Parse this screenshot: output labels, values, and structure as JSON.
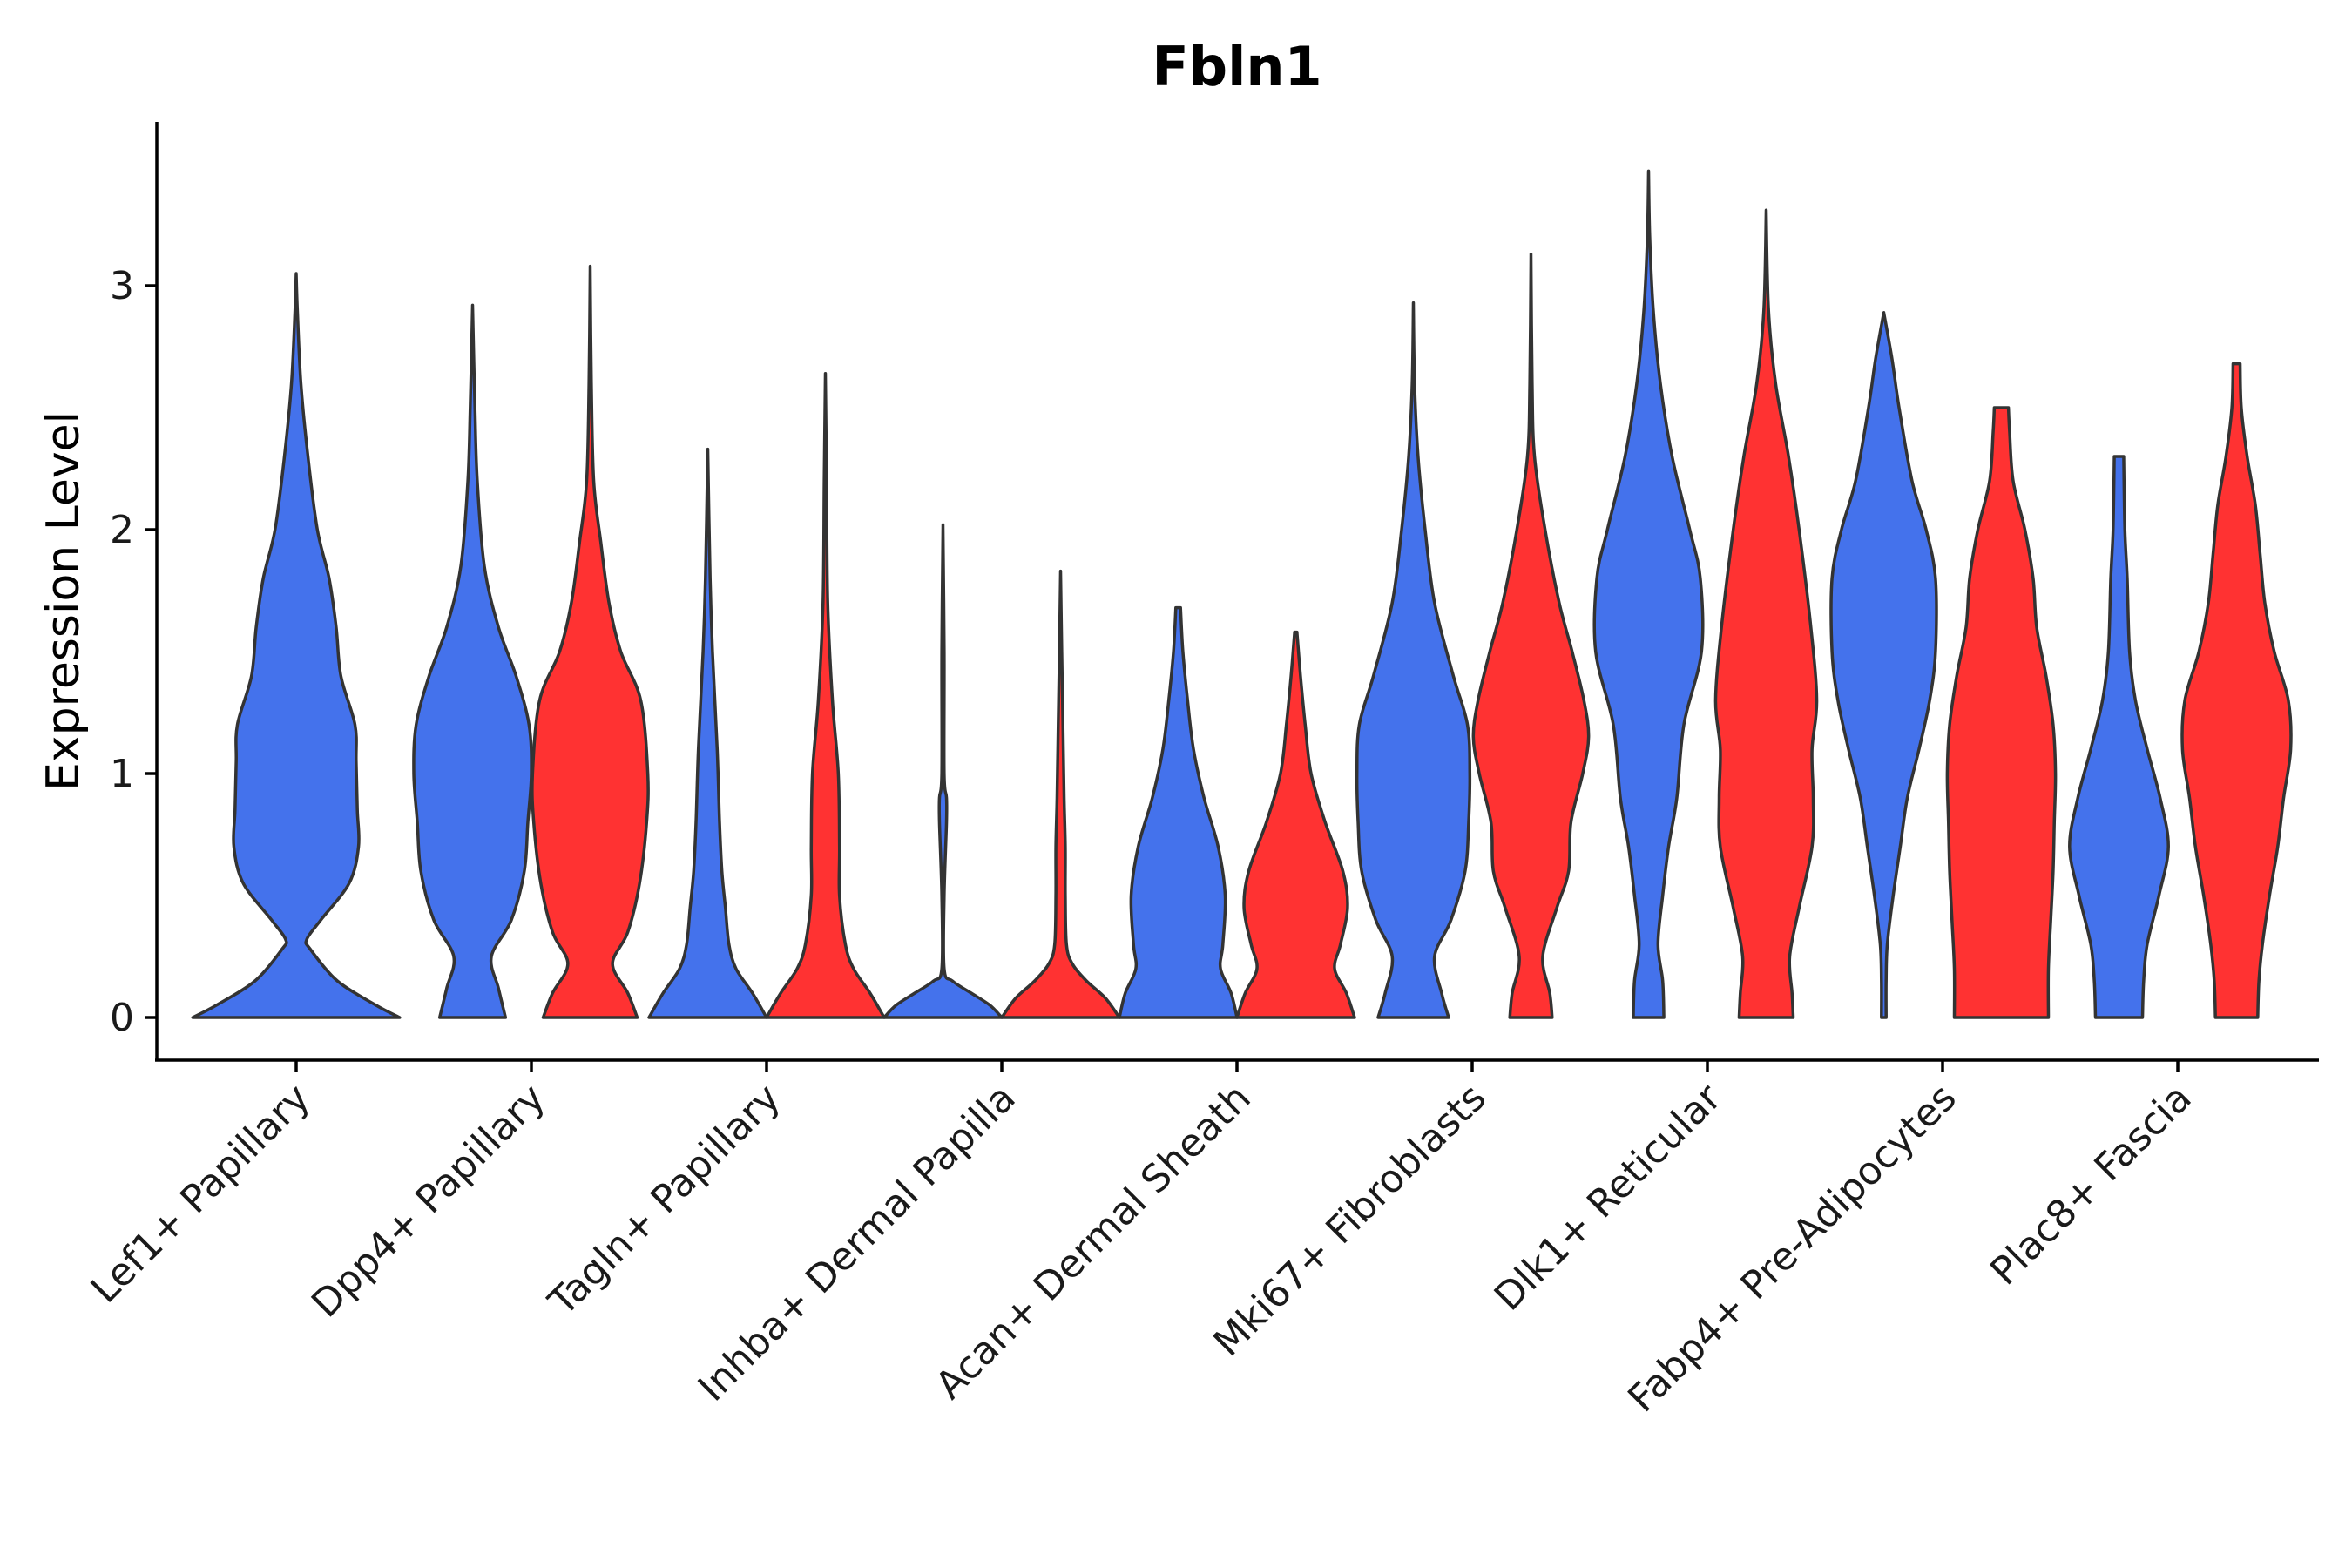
{
  "chart_data": {
    "type": "violin",
    "title": "Fbln1",
    "xlabel": "",
    "ylabel": "Expression Level",
    "ylim": [
      -0.18,
      3.65
    ],
    "yticks": [
      0,
      1,
      2,
      3
    ],
    "ytick_labels": [
      "0",
      "1",
      "2",
      "3"
    ],
    "grid": false,
    "legend": "none",
    "categories": [
      "Lef1+ Papillary",
      "Dpp4+ Papillary",
      "Tagln+ Papillary",
      "Inhba+ Dermal Papilla",
      "Acan+ Dermal Sheath",
      "Mki67+ Fibroblasts",
      "Dlk1+ Reticular",
      "Fabp4+ Pre-Adipocytes",
      "Plac8+ Fascia"
    ],
    "series": [
      {
        "name": "blue",
        "color": "#4472EC"
      },
      {
        "name": "red",
        "color": "#FF3232"
      }
    ],
    "violins": [
      {
        "category": "Lef1+ Papillary",
        "series": "blue",
        "offset": 0,
        "max": 3.05,
        "profile": [
          [
            0,
            0.88
          ],
          [
            0.05,
            0.68
          ],
          [
            0.15,
            0.35
          ],
          [
            0.28,
            0.12
          ],
          [
            0.32,
            0.09
          ],
          [
            0.4,
            0.21
          ],
          [
            0.55,
            0.45
          ],
          [
            0.7,
            0.53
          ],
          [
            0.85,
            0.52
          ],
          [
            1.05,
            0.51
          ],
          [
            1.2,
            0.5
          ],
          [
            1.4,
            0.38
          ],
          [
            1.6,
            0.34
          ],
          [
            1.8,
            0.28
          ],
          [
            2.0,
            0.18
          ],
          [
            2.3,
            0.1
          ],
          [
            2.6,
            0.04
          ],
          [
            2.9,
            0.01
          ],
          [
            3.05,
            0
          ]
        ]
      },
      {
        "category": "Dpp4+ Papillary",
        "series": "blue",
        "offset": -0.25,
        "max": 2.92,
        "profile": [
          [
            0,
            0.28
          ],
          [
            0.12,
            0.22
          ],
          [
            0.25,
            0.16
          ],
          [
            0.4,
            0.33
          ],
          [
            0.6,
            0.44
          ],
          [
            0.8,
            0.47
          ],
          [
            1.0,
            0.5
          ],
          [
            1.2,
            0.48
          ],
          [
            1.4,
            0.37
          ],
          [
            1.6,
            0.22
          ],
          [
            1.85,
            0.1
          ],
          [
            2.2,
            0.04
          ],
          [
            2.5,
            0.02
          ],
          [
            2.92,
            0
          ]
        ]
      },
      {
        "category": "Dpp4+ Papillary",
        "series": "red",
        "offset": 0.25,
        "max": 3.08,
        "profile": [
          [
            0,
            0.4
          ],
          [
            0.1,
            0.32
          ],
          [
            0.22,
            0.19
          ],
          [
            0.35,
            0.32
          ],
          [
            0.55,
            0.42
          ],
          [
            0.8,
            0.48
          ],
          [
            1.0,
            0.49
          ],
          [
            1.3,
            0.43
          ],
          [
            1.5,
            0.26
          ],
          [
            1.7,
            0.16
          ],
          [
            1.95,
            0.09
          ],
          [
            2.2,
            0.03
          ],
          [
            2.6,
            0.01
          ],
          [
            3.08,
            0
          ]
        ]
      },
      {
        "category": "Tagln+ Papillary",
        "series": "blue",
        "offset": -0.25,
        "max": 2.33,
        "profile": [
          [
            0,
            0.5
          ],
          [
            0.1,
            0.38
          ],
          [
            0.2,
            0.24
          ],
          [
            0.3,
            0.18
          ],
          [
            0.45,
            0.15
          ],
          [
            0.6,
            0.12
          ],
          [
            0.8,
            0.1
          ],
          [
            1.1,
            0.08
          ],
          [
            1.5,
            0.04
          ],
          [
            1.8,
            0.02
          ],
          [
            2.33,
            0
          ]
        ]
      },
      {
        "category": "Tagln+ Papillary",
        "series": "red",
        "offset": 0.25,
        "max": 2.64,
        "profile": [
          [
            0,
            0.5
          ],
          [
            0.1,
            0.38
          ],
          [
            0.2,
            0.24
          ],
          [
            0.3,
            0.17
          ],
          [
            0.5,
            0.12
          ],
          [
            0.7,
            0.12
          ],
          [
            1.0,
            0.11
          ],
          [
            1.3,
            0.06
          ],
          [
            1.7,
            0.02
          ],
          [
            2.2,
            0.01
          ],
          [
            2.64,
            0
          ]
        ]
      },
      {
        "category": "Inhba+ Dermal Papilla",
        "series": "blue",
        "offset": -0.25,
        "max": 2.02,
        "profile": [
          [
            0,
            0.5
          ],
          [
            0.05,
            0.4
          ],
          [
            0.1,
            0.24
          ],
          [
            0.15,
            0.08
          ],
          [
            0.2,
            0.01
          ],
          [
            0.5,
            0.01
          ],
          [
            0.8,
            0.03
          ],
          [
            0.9,
            0.03
          ],
          [
            1.0,
            0.01
          ],
          [
            1.5,
            0.01
          ],
          [
            2.02,
            0
          ]
        ]
      },
      {
        "category": "Inhba+ Dermal Papilla",
        "series": "red",
        "offset": 0.25,
        "max": 1.83,
        "profile": [
          [
            0,
            0.5
          ],
          [
            0.08,
            0.38
          ],
          [
            0.15,
            0.22
          ],
          [
            0.22,
            0.1
          ],
          [
            0.3,
            0.05
          ],
          [
            0.5,
            0.04
          ],
          [
            0.7,
            0.04
          ],
          [
            0.9,
            0.03
          ],
          [
            1.2,
            0.02
          ],
          [
            1.5,
            0.01
          ],
          [
            1.83,
            0
          ]
        ]
      },
      {
        "category": "Acan+ Dermal Sheath",
        "series": "blue",
        "offset": -0.25,
        "max": 1.68,
        "profile": [
          [
            0,
            0.5
          ],
          [
            0.1,
            0.45
          ],
          [
            0.2,
            0.36
          ],
          [
            0.3,
            0.38
          ],
          [
            0.5,
            0.4
          ],
          [
            0.7,
            0.34
          ],
          [
            0.9,
            0.22
          ],
          [
            1.1,
            0.13
          ],
          [
            1.3,
            0.08
          ],
          [
            1.5,
            0.04
          ],
          [
            1.68,
            0.02
          ]
        ]
      },
      {
        "category": "Acan+ Dermal Sheath",
        "series": "red",
        "offset": 0.25,
        "max": 1.58,
        "profile": [
          [
            0,
            0.5
          ],
          [
            0.1,
            0.43
          ],
          [
            0.2,
            0.33
          ],
          [
            0.3,
            0.38
          ],
          [
            0.45,
            0.44
          ],
          [
            0.6,
            0.4
          ],
          [
            0.8,
            0.25
          ],
          [
            1.0,
            0.13
          ],
          [
            1.2,
            0.08
          ],
          [
            1.4,
            0.04
          ],
          [
            1.58,
            0.01
          ]
        ]
      },
      {
        "category": "Mki67+ Fibroblasts",
        "series": "blue",
        "offset": -0.25,
        "max": 2.93,
        "profile": [
          [
            0,
            0.3
          ],
          [
            0.1,
            0.24
          ],
          [
            0.25,
            0.18
          ],
          [
            0.4,
            0.32
          ],
          [
            0.6,
            0.44
          ],
          [
            0.8,
            0.47
          ],
          [
            1.0,
            0.48
          ],
          [
            1.2,
            0.46
          ],
          [
            1.4,
            0.34
          ],
          [
            1.7,
            0.18
          ],
          [
            2.0,
            0.1
          ],
          [
            2.3,
            0.04
          ],
          [
            2.6,
            0.01
          ],
          [
            2.93,
            0
          ]
        ]
      },
      {
        "category": "Mki67+ Fibroblasts",
        "series": "red",
        "offset": 0.25,
        "max": 3.13,
        "profile": [
          [
            0,
            0.18
          ],
          [
            0.1,
            0.16
          ],
          [
            0.25,
            0.1
          ],
          [
            0.45,
            0.22
          ],
          [
            0.6,
            0.32
          ],
          [
            0.8,
            0.34
          ],
          [
            1.0,
            0.44
          ],
          [
            1.15,
            0.49
          ],
          [
            1.3,
            0.45
          ],
          [
            1.5,
            0.35
          ],
          [
            1.7,
            0.24
          ],
          [
            2.0,
            0.12
          ],
          [
            2.3,
            0.03
          ],
          [
            2.6,
            0.01
          ],
          [
            3.13,
            0
          ]
        ]
      },
      {
        "category": "Dlk1+ Reticular",
        "series": "blue",
        "offset": -0.25,
        "max": 3.47,
        "profile": [
          [
            0,
            0.13
          ],
          [
            0.15,
            0.12
          ],
          [
            0.3,
            0.08
          ],
          [
            0.5,
            0.12
          ],
          [
            0.7,
            0.17
          ],
          [
            0.9,
            0.24
          ],
          [
            1.2,
            0.3
          ],
          [
            1.5,
            0.45
          ],
          [
            1.8,
            0.44
          ],
          [
            2.0,
            0.35
          ],
          [
            2.3,
            0.2
          ],
          [
            2.6,
            0.1
          ],
          [
            2.9,
            0.04
          ],
          [
            3.2,
            0.01
          ],
          [
            3.47,
            0
          ]
        ]
      },
      {
        "category": "Dlk1+ Reticular",
        "series": "red",
        "offset": 0.25,
        "max": 3.31,
        "profile": [
          [
            0,
            0.23
          ],
          [
            0.1,
            0.22
          ],
          [
            0.25,
            0.2
          ],
          [
            0.45,
            0.28
          ],
          [
            0.7,
            0.39
          ],
          [
            0.9,
            0.4
          ],
          [
            1.1,
            0.39
          ],
          [
            1.3,
            0.43
          ],
          [
            1.6,
            0.38
          ],
          [
            2.0,
            0.28
          ],
          [
            2.3,
            0.19
          ],
          [
            2.6,
            0.08
          ],
          [
            2.9,
            0.02
          ],
          [
            3.31,
            0
          ]
        ]
      },
      {
        "category": "Fabp4+ Pre-Adipocytes",
        "series": "blue",
        "offset": -0.25,
        "max": 2.89,
        "profile": [
          [
            0,
            0.02
          ],
          [
            0.15,
            0.02
          ],
          [
            0.3,
            0.03
          ],
          [
            0.5,
            0.08
          ],
          [
            0.7,
            0.14
          ],
          [
            0.9,
            0.2
          ],
          [
            1.1,
            0.3
          ],
          [
            1.3,
            0.39
          ],
          [
            1.5,
            0.44
          ],
          [
            1.8,
            0.44
          ],
          [
            2.0,
            0.36
          ],
          [
            2.2,
            0.24
          ],
          [
            2.5,
            0.13
          ],
          [
            2.7,
            0.07
          ],
          [
            2.89,
            0
          ]
        ]
      },
      {
        "category": "Fabp4+ Pre-Adipocytes",
        "series": "red",
        "offset": 0.25,
        "max": 2.5,
        "profile": [
          [
            0,
            0.4
          ],
          [
            0.2,
            0.4
          ],
          [
            0.4,
            0.42
          ],
          [
            0.6,
            0.44
          ],
          [
            0.8,
            0.45
          ],
          [
            1.0,
            0.46
          ],
          [
            1.2,
            0.44
          ],
          [
            1.4,
            0.38
          ],
          [
            1.6,
            0.3
          ],
          [
            1.8,
            0.27
          ],
          [
            2.0,
            0.2
          ],
          [
            2.2,
            0.1
          ],
          [
            2.4,
            0.07
          ],
          [
            2.5,
            0.06
          ]
        ]
      },
      {
        "category": "Plac8+ Fascia",
        "series": "blue",
        "offset": -0.25,
        "max": 2.3,
        "profile": [
          [
            0,
            0.2
          ],
          [
            0.15,
            0.21
          ],
          [
            0.3,
            0.24
          ],
          [
            0.5,
            0.34
          ],
          [
            0.7,
            0.42
          ],
          [
            0.9,
            0.35
          ],
          [
            1.1,
            0.24
          ],
          [
            1.3,
            0.14
          ],
          [
            1.5,
            0.09
          ],
          [
            1.8,
            0.07
          ],
          [
            2.0,
            0.05
          ],
          [
            2.3,
            0.04
          ]
        ]
      },
      {
        "category": "Plac8+ Fascia",
        "series": "red",
        "offset": 0.25,
        "max": 2.68,
        "profile": [
          [
            0,
            0.18
          ],
          [
            0.15,
            0.19
          ],
          [
            0.3,
            0.22
          ],
          [
            0.5,
            0.28
          ],
          [
            0.7,
            0.35
          ],
          [
            0.9,
            0.4
          ],
          [
            1.1,
            0.46
          ],
          [
            1.3,
            0.44
          ],
          [
            1.5,
            0.32
          ],
          [
            1.7,
            0.24
          ],
          [
            1.9,
            0.2
          ],
          [
            2.1,
            0.16
          ],
          [
            2.3,
            0.09
          ],
          [
            2.5,
            0.04
          ],
          [
            2.68,
            0.03
          ]
        ]
      }
    ]
  }
}
